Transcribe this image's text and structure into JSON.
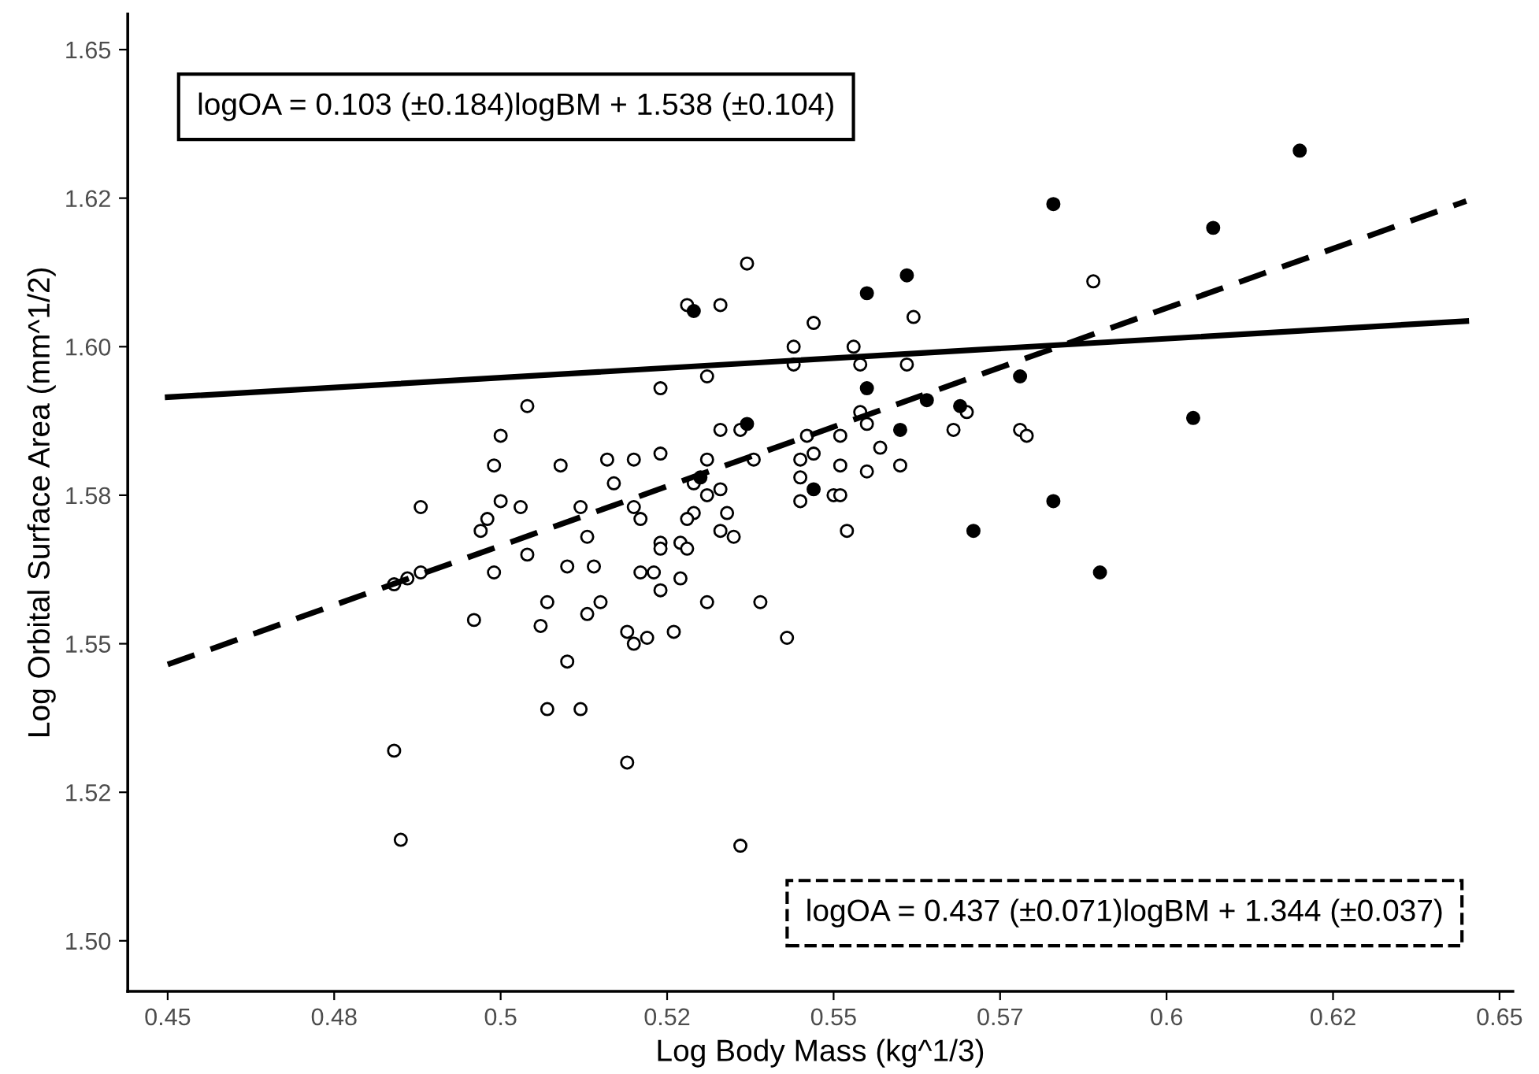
{
  "chart_data": {
    "type": "scatter",
    "xlabel": "Log Body Mass (kg^1/3)",
    "ylabel": "Log Orbital Surface Area (mm^1/2)",
    "xlim": [
      0.444,
      0.652
    ],
    "ylim": [
      1.4915,
      1.656
    ],
    "xticks": [
      0.45,
      {
        "value": 0.475,
        "label": "0.48"
      },
      0.5,
      {
        "value": 0.525,
        "label": "0.52"
      },
      0.55,
      {
        "value": 0.575,
        "label": "0.57"
      },
      0.6,
      {
        "value": 0.625,
        "label": "0.62"
      },
      0.65
    ],
    "yticks": [
      {
        "value": 1.5,
        "label": "1.50"
      },
      {
        "value": 1.525,
        "label": "1.52"
      },
      {
        "value": 1.55,
        "label": "1.55"
      },
      {
        "value": 1.575,
        "label": "1.58"
      },
      {
        "value": 1.6,
        "label": "1.60"
      },
      {
        "value": 1.625,
        "label": "1.62"
      },
      {
        "value": 1.65,
        "label": "1.65"
      }
    ],
    "grid": false,
    "legend": false,
    "annotations": [
      "logOA = 0.103 (±0.184)logBM + 1.538 (±0.104)",
      "logOA = 0.437 (±0.071)logBM + 1.344 (±0.037)"
    ],
    "series": [
      {
        "marker": "circle",
        "color": "#ffffff",
        "x": [
          0.504,
          0.524,
          0.5,
          0.499,
          0.509,
          0.516,
          0.52,
          0.524,
          0.517,
          0.488,
          0.5,
          0.503,
          0.512,
          0.52,
          0.521,
          0.498,
          0.497,
          0.513,
          0.524,
          0.524,
          0.484,
          0.486,
          0.488,
          0.499,
          0.504,
          0.51,
          0.514,
          0.521,
          0.523,
          0.524,
          0.507,
          0.515,
          0.496,
          0.506,
          0.513,
          0.519,
          0.52,
          0.522,
          0.526,
          0.51,
          0.507,
          0.512,
          0.484,
          0.519,
          0.485,
          0.537,
          0.528,
          0.533,
          0.547,
          0.562,
          0.544,
          0.544,
          0.553,
          0.554,
          0.561,
          0.531,
          0.554,
          0.555,
          0.57,
          0.568,
          0.533,
          0.536,
          0.546,
          0.551,
          0.557,
          0.531,
          0.538,
          0.547,
          0.545,
          0.551,
          0.555,
          0.56,
          0.529,
          0.545,
          0.533,
          0.531,
          0.55,
          0.551,
          0.545,
          0.529,
          0.528,
          0.534,
          0.533,
          0.535,
          0.552,
          0.527,
          0.528,
          0.527,
          0.531,
          0.539,
          0.543,
          0.589,
          0.578,
          0.579,
          0.536
        ],
        "values": [
          1.59,
          1.593,
          1.585,
          1.58,
          1.58,
          1.581,
          1.581,
          1.582,
          1.577,
          1.573,
          1.574,
          1.573,
          1.573,
          1.573,
          1.571,
          1.571,
          1.569,
          1.568,
          1.567,
          1.566,
          1.56,
          1.561,
          1.562,
          1.562,
          1.565,
          1.563,
          1.563,
          1.562,
          1.562,
          1.559,
          1.557,
          1.557,
          1.554,
          1.553,
          1.555,
          1.552,
          1.55,
          1.551,
          1.552,
          1.547,
          1.539,
          1.539,
          1.532,
          1.53,
          1.517,
          1.614,
          1.607,
          1.607,
          1.604,
          1.605,
          1.6,
          1.597,
          1.6,
          1.597,
          1.597,
          1.595,
          1.589,
          1.587,
          1.589,
          1.586,
          1.586,
          1.586,
          1.585,
          1.585,
          1.583,
          1.581,
          1.581,
          1.582,
          1.581,
          1.58,
          1.579,
          1.58,
          1.577,
          1.578,
          1.576,
          1.575,
          1.575,
          1.575,
          1.574,
          1.572,
          1.571,
          1.572,
          1.569,
          1.568,
          1.569,
          1.567,
          1.566,
          1.561,
          1.557,
          1.557,
          1.551,
          1.611,
          1.586,
          1.585,
          1.516
        ]
      },
      {
        "marker": "circle",
        "color": "#000000",
        "x": [
          0.529,
          0.555,
          0.561,
          0.537,
          0.555,
          0.564,
          0.53,
          0.547,
          0.56,
          0.571,
          0.583,
          0.607,
          0.578,
          0.569,
          0.604,
          0.583,
          0.59,
          0.62
        ],
        "values": [
          1.606,
          1.609,
          1.612,
          1.587,
          1.593,
          1.591,
          1.578,
          1.576,
          1.586,
          1.569,
          1.624,
          1.62,
          1.595,
          1.59,
          1.588,
          1.574,
          1.562,
          1.633
        ]
      },
      {
        "type": "line",
        "color": "#000000",
        "line_style": "solid",
        "x": [
          0.45,
          0.645
        ],
        "values": [
          1.5915,
          1.6043
        ]
      },
      {
        "type": "line",
        "color": "#000000",
        "line_style": "dashed",
        "x": [
          0.45,
          0.645
        ],
        "values": [
          1.5465,
          1.6245
        ]
      }
    ]
  }
}
